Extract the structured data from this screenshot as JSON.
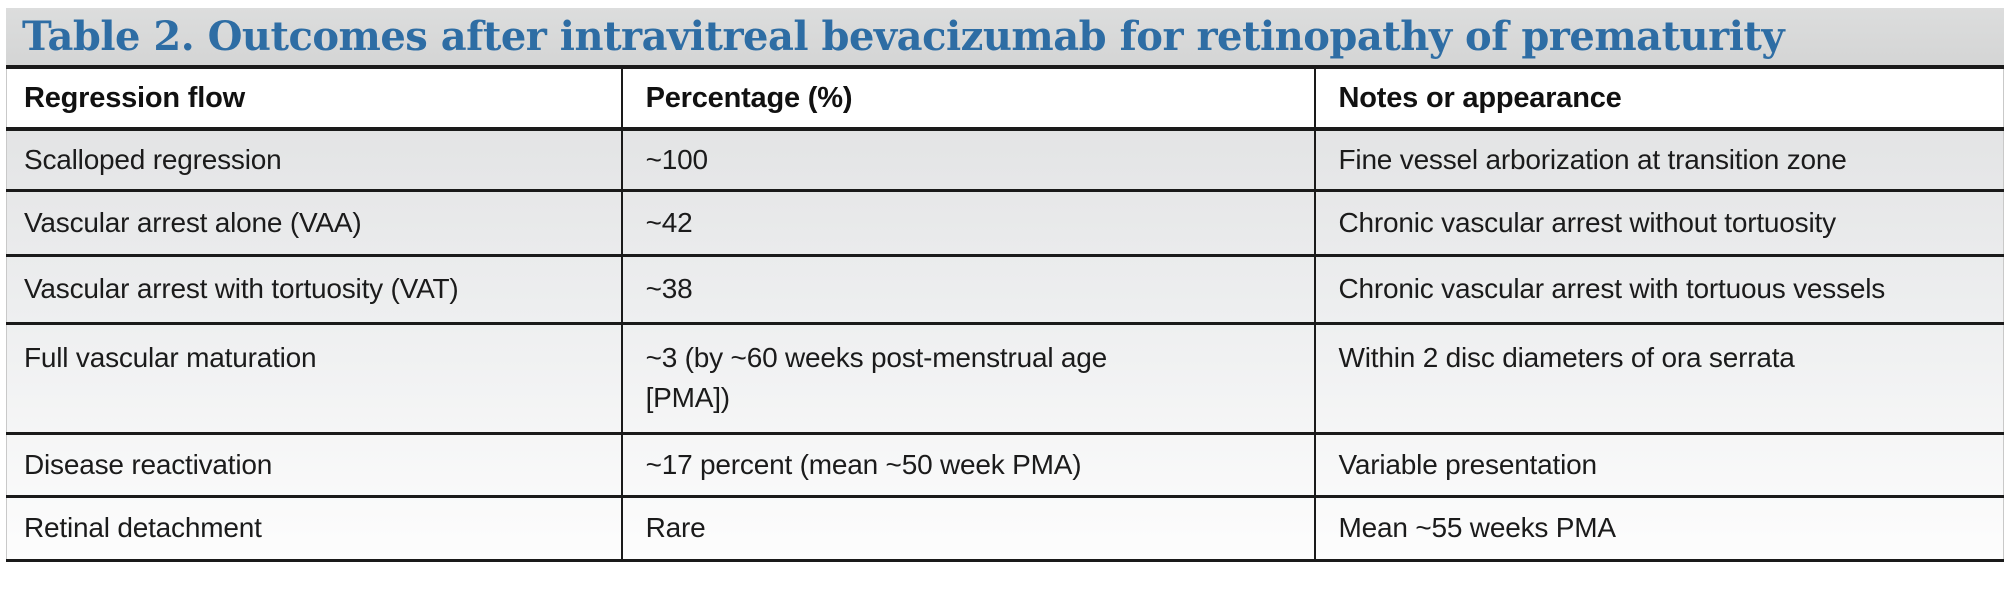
{
  "title": "Table 2. Outcomes after intravitreal bevacizumab for retinopathy of prematurity",
  "colors": {
    "title_text": "#2e6da4",
    "title_background": "#d7d8d8",
    "rule_black": "#1a1a1a",
    "body_gradient_top": "#e3e4e5",
    "body_gradient_bottom": "#fdfdfd"
  },
  "table": {
    "columns": [
      "Regression flow",
      "Percentage (%)",
      "Notes or appearance"
    ],
    "rows": [
      {
        "regression": "Scalloped regression",
        "percentage": "~100",
        "notes": "Fine vessel arborization at transition zone"
      },
      {
        "regression": "Vascular arrest alone (VAA)",
        "percentage": "~42",
        "notes": "Chronic vascular arrest without tortuosity"
      },
      {
        "regression": "Vascular arrest with tortuosity (VAT)",
        "percentage": "~38",
        "notes": "Chronic vascular arrest with tortuous vessels"
      },
      {
        "regression": "Full vascular maturation",
        "percentage": "~3 (by ~60 weeks post-menstrual age [PMA])",
        "notes": "Within 2 disc diameters of ora serrata"
      },
      {
        "regression": "Disease reactivation",
        "percentage": "~17 percent (mean ~50 week PMA)",
        "notes": "Variable presentation"
      },
      {
        "regression": "Retinal detachment",
        "percentage": "Rare",
        "notes": "Mean ~55 weeks PMA"
      }
    ]
  }
}
